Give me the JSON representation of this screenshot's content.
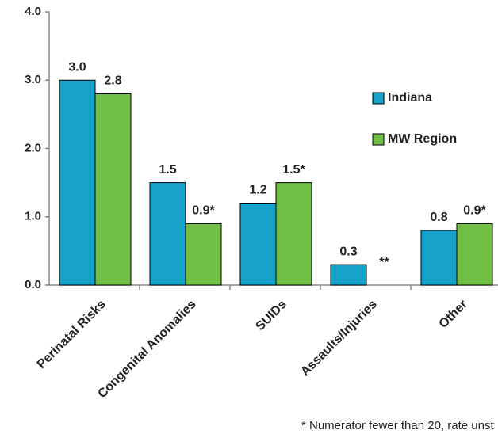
{
  "chart_data": {
    "type": "bar",
    "categories": [
      "Perinatal Risks",
      "Congenital Anomalies",
      "SUIDs",
      "Assaults/Injuries",
      "Other"
    ],
    "series": [
      {
        "name": "Indiana",
        "color": "#17a3c9",
        "values": [
          3.0,
          1.5,
          1.2,
          0.3,
          0.8
        ],
        "value_labels": [
          "3.0",
          "1.5",
          "1.2",
          "0.3",
          "0.8"
        ]
      },
      {
        "name": "MW Region",
        "color": "#70bf44",
        "values": [
          2.8,
          0.9,
          1.5,
          null,
          0.9
        ],
        "value_labels": [
          "2.8",
          "0.9*",
          "1.5*",
          "**",
          "0.9*"
        ]
      }
    ],
    "ylim": [
      0,
      4
    ],
    "yticks": [
      {
        "value": 0,
        "label": "0.0"
      },
      {
        "value": 1,
        "label": "1.0"
      },
      {
        "value": 2,
        "label": "2.0"
      },
      {
        "value": 3,
        "label": "3.0"
      },
      {
        "value": 4,
        "label": "4.0"
      }
    ],
    "legend": "right",
    "footnote": "* Numerator fewer than 20, rate unst"
  }
}
